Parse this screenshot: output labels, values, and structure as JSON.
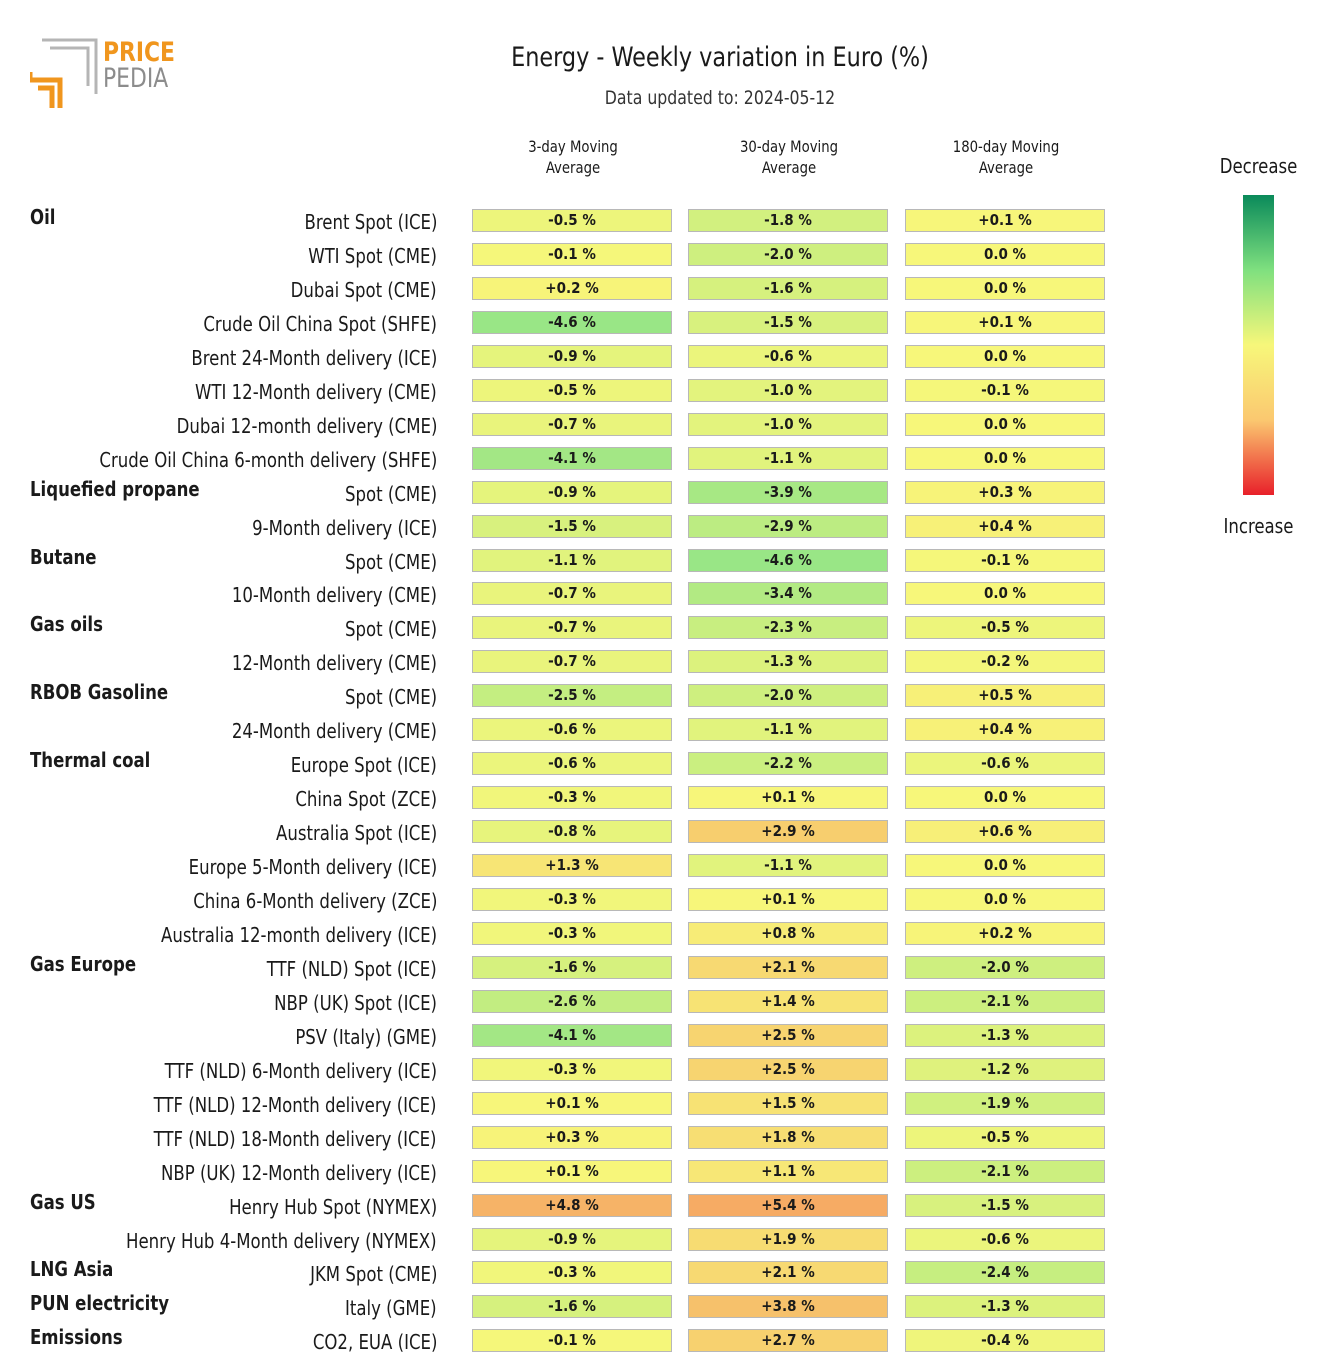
{
  "logo": {
    "line1": "PRICE",
    "line2": "PEDIA",
    "colors": {
      "orange": "#f0961e",
      "gray": "#8c8c8c"
    }
  },
  "title": "Energy - Weekly variation in Euro (%)",
  "subtitle": "Data updated to: 2024-05-12",
  "legend": {
    "top_label": "Decrease",
    "bottom_label": "Increase",
    "colors": [
      "#0a8a5a",
      "#7fe07f",
      "#f7f77a",
      "#fbc870",
      "#e8202a"
    ]
  },
  "chart_data": {
    "type": "table",
    "title": "Energy - Weekly variation in Euro (%)",
    "columns": [
      "3-day Moving\nAverage",
      "30-day Moving\nAverage",
      "180-day Moving\nAverage"
    ],
    "rows": [
      {
        "group": "Oil",
        "label": "Brent Spot (ICE)",
        "values": [
          "-0.5 %",
          "-1.8 %",
          "+0.1 %"
        ]
      },
      {
        "group": "",
        "label": "WTI Spot (CME)",
        "values": [
          "-0.1 %",
          "-2.0 %",
          "0.0 %"
        ]
      },
      {
        "group": "",
        "label": "Dubai Spot (CME)",
        "values": [
          "+0.2 %",
          "-1.6 %",
          "0.0 %"
        ]
      },
      {
        "group": "",
        "label": "Crude Oil China Spot (SHFE)",
        "values": [
          "-4.6 %",
          "-1.5 %",
          "+0.1 %"
        ]
      },
      {
        "group": "",
        "label": "Brent 24-Month delivery (ICE)",
        "values": [
          "-0.9 %",
          "-0.6 %",
          "0.0 %"
        ]
      },
      {
        "group": "",
        "label": "WTI 12-Month delivery (CME)",
        "values": [
          "-0.5 %",
          "-1.0 %",
          "-0.1 %"
        ]
      },
      {
        "group": "",
        "label": "Dubai 12-month delivery (CME)",
        "values": [
          "-0.7 %",
          "-1.0 %",
          "0.0 %"
        ]
      },
      {
        "group": "",
        "label": "Crude Oil China 6-month delivery (SHFE)",
        "values": [
          "-4.1 %",
          "-1.1 %",
          "0.0 %"
        ]
      },
      {
        "group": "Liquefied propane",
        "label": "Spot (CME)",
        "values": [
          "-0.9 %",
          "-3.9 %",
          "+0.3 %"
        ]
      },
      {
        "group": "",
        "label": "9-Month delivery (ICE)",
        "values": [
          "-1.5 %",
          "-2.9 %",
          "+0.4 %"
        ]
      },
      {
        "group": "Butane",
        "label": "Spot (CME)",
        "values": [
          "-1.1 %",
          "-4.6 %",
          "-0.1 %"
        ]
      },
      {
        "group": "",
        "label": "10-Month delivery (CME)",
        "values": [
          "-0.7 %",
          "-3.4 %",
          "0.0 %"
        ]
      },
      {
        "group": "Gas oils",
        "label": "Spot (CME)",
        "values": [
          "-0.7 %",
          "-2.3 %",
          "-0.5 %"
        ]
      },
      {
        "group": "",
        "label": "12-Month delivery (CME)",
        "values": [
          "-0.7 %",
          "-1.3 %",
          "-0.2 %"
        ]
      },
      {
        "group": "RBOB Gasoline",
        "label": "Spot (CME)",
        "values": [
          "-2.5 %",
          "-2.0 %",
          "+0.5 %"
        ]
      },
      {
        "group": "",
        "label": "24-Month delivery (CME)",
        "values": [
          "-0.6 %",
          "-1.1 %",
          "+0.4 %"
        ]
      },
      {
        "group": "Thermal coal",
        "label": "Europe Spot (ICE)",
        "values": [
          "-0.6 %",
          "-2.2 %",
          "-0.6 %"
        ]
      },
      {
        "group": "",
        "label": "China Spot (ZCE)",
        "values": [
          "-0.3 %",
          "+0.1 %",
          "0.0 %"
        ]
      },
      {
        "group": "",
        "label": "Australia Spot (ICE)",
        "values": [
          "-0.8 %",
          "+2.9 %",
          "+0.6 %"
        ]
      },
      {
        "group": "",
        "label": "Europe 5-Month delivery (ICE)",
        "values": [
          "+1.3 %",
          "-1.1 %",
          "0.0 %"
        ]
      },
      {
        "group": "",
        "label": "China 6-Month delivery (ZCE)",
        "values": [
          "-0.3 %",
          "+0.1 %",
          "0.0 %"
        ]
      },
      {
        "group": "",
        "label": "Australia 12-month delivery (ICE)",
        "values": [
          "-0.3 %",
          "+0.8 %",
          "+0.2 %"
        ]
      },
      {
        "group": "Gas Europe",
        "label": "TTF (NLD) Spot (ICE)",
        "values": [
          "-1.6 %",
          "+2.1 %",
          "-2.0 %"
        ]
      },
      {
        "group": "",
        "label": "NBP (UK) Spot (ICE)",
        "values": [
          "-2.6 %",
          "+1.4 %",
          "-2.1 %"
        ]
      },
      {
        "group": "",
        "label": "PSV (Italy) (GME)",
        "values": [
          "-4.1 %",
          "+2.5 %",
          "-1.3 %"
        ]
      },
      {
        "group": "",
        "label": "TTF (NLD) 6-Month delivery (ICE)",
        "values": [
          "-0.3 %",
          "+2.5 %",
          "-1.2 %"
        ]
      },
      {
        "group": "",
        "label": "TTF (NLD) 12-Month delivery (ICE)",
        "values": [
          "+0.1 %",
          "+1.5 %",
          "-1.9 %"
        ]
      },
      {
        "group": "",
        "label": "TTF (NLD) 18-Month delivery (ICE)",
        "values": [
          "+0.3 %",
          "+1.8 %",
          "-0.5 %"
        ]
      },
      {
        "group": "",
        "label": "NBP (UK) 12-Month delivery (ICE)",
        "values": [
          "+0.1 %",
          "+1.1 %",
          "-2.1 %"
        ]
      },
      {
        "group": "Gas US",
        "label": "Henry Hub Spot (NYMEX)",
        "values": [
          "+4.8 %",
          "+5.4 %",
          "-1.5 %"
        ]
      },
      {
        "group": "",
        "label": "Henry Hub 4-Month delivery (NYMEX)",
        "values": [
          "-0.9 %",
          "+1.9 %",
          "-0.6 %"
        ]
      },
      {
        "group": "LNG Asia",
        "label": "JKM Spot (CME)",
        "values": [
          "-0.3 %",
          "+2.1 %",
          "-2.4 %"
        ]
      },
      {
        "group": "PUN electricity",
        "label": "Italy (GME)",
        "values": [
          "-1.6 %",
          "+3.8 %",
          "-1.3 %"
        ]
      },
      {
        "group": "Emissions",
        "label": "CO2, EUA (ICE)",
        "values": [
          "-0.1 %",
          "+2.7 %",
          "-0.4 %"
        ]
      }
    ]
  }
}
